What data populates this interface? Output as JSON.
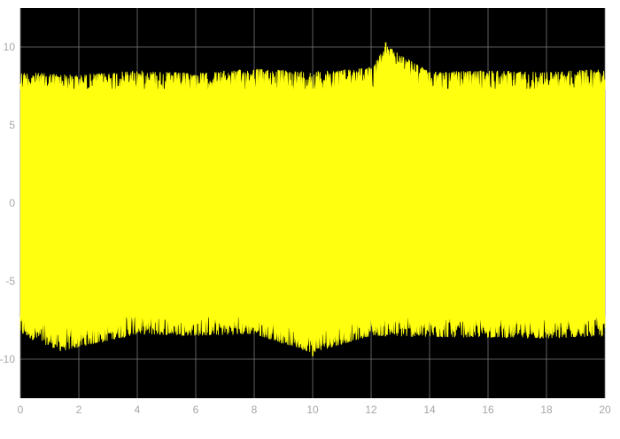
{
  "colors": {
    "plot_background": "#000000",
    "signal": "#ffff0f",
    "grid": "#7a7a7a",
    "tick_text": "#a6a6a6",
    "figure_background": "#ffffff"
  },
  "chart_data": {
    "type": "line",
    "title": "",
    "xlabel": "",
    "ylabel": "",
    "xlim": [
      0,
      20
    ],
    "ylim": [
      -12.5,
      12.5
    ],
    "xticks": [
      0,
      2,
      4,
      6,
      8,
      10,
      12,
      14,
      16,
      18,
      20
    ],
    "yticks": [
      -10,
      -5,
      0,
      5,
      10
    ],
    "grid": true,
    "legend": "none",
    "series": [
      {
        "style": "dense noise signal",
        "color": "#ffff0f",
        "x_range": [
          0,
          20
        ],
        "typical_band": [
          -8.5,
          8.5
        ],
        "peak_max": 10.3,
        "peak_min": -9.8,
        "envelope_upper": [
          {
            "x": 0,
            "y": 8.6
          },
          {
            "x": 2,
            "y": 8.4
          },
          {
            "x": 4,
            "y": 8.7
          },
          {
            "x": 6,
            "y": 8.5
          },
          {
            "x": 8,
            "y": 8.8
          },
          {
            "x": 10,
            "y": 8.6
          },
          {
            "x": 12,
            "y": 8.9
          },
          {
            "x": 12.5,
            "y": 10.3
          },
          {
            "x": 14,
            "y": 8.6
          },
          {
            "x": 16,
            "y": 8.7
          },
          {
            "x": 18,
            "y": 8.6
          },
          {
            "x": 20,
            "y": 8.8
          }
        ],
        "envelope_lower": [
          {
            "x": 0,
            "y": -8.6
          },
          {
            "x": 1.4,
            "y": -9.7
          },
          {
            "x": 4,
            "y": -8.6
          },
          {
            "x": 6,
            "y": -8.7
          },
          {
            "x": 8,
            "y": -8.6
          },
          {
            "x": 10,
            "y": -9.8
          },
          {
            "x": 12,
            "y": -8.7
          },
          {
            "x": 14,
            "y": -8.8
          },
          {
            "x": 16,
            "y": -8.8
          },
          {
            "x": 18,
            "y": -8.9
          },
          {
            "x": 20,
            "y": -8.7
          }
        ]
      }
    ]
  }
}
